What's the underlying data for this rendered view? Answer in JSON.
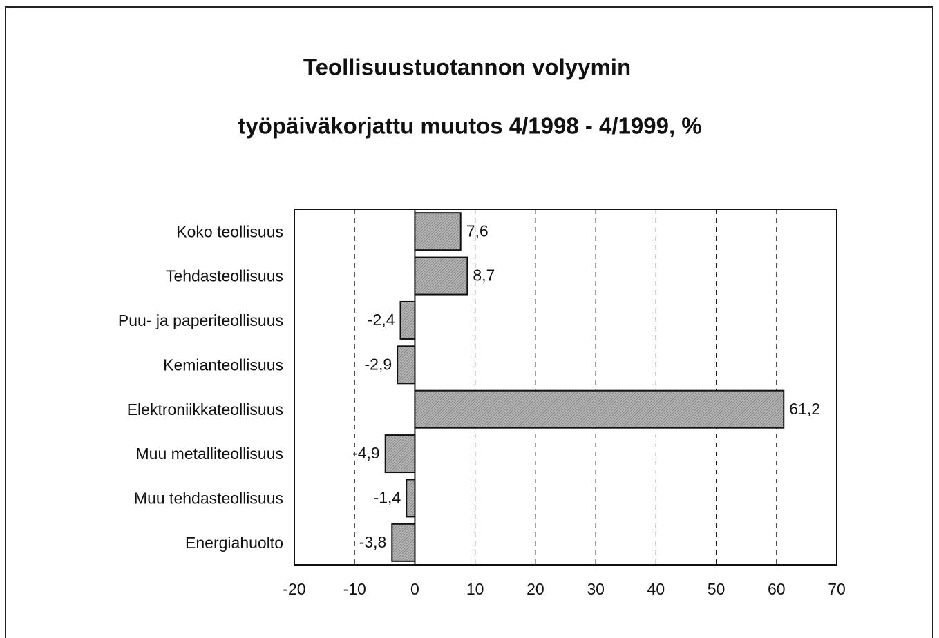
{
  "chart_data": {
    "type": "barh",
    "title": "Teollisuustuotannon volyymin",
    "subtitle": "työpäiväkorjattu muutos 4/1998 - 4/1999, %",
    "categories": [
      "Koko teollisuus",
      "Tehdasteollisuus",
      "Puu- ja paperiteollisuus",
      "Kemianteollisuus",
      "Elektroniikkateollisuus",
      "Muu metalliteollisuus",
      "Muu tehdasteollisuus",
      "Energiahuolto"
    ],
    "values": [
      7.6,
      8.7,
      -2.4,
      -2.9,
      61.2,
      -4.9,
      -1.4,
      -3.8
    ],
    "value_labels": [
      "7,6",
      "8,7",
      "-2,4",
      "-2,9",
      "61,2",
      "-4,9",
      "-1,4",
      "-3,8"
    ],
    "color": "#a8a8a8",
    "xlim": [
      -20,
      70
    ],
    "xticks": [
      -20,
      -10,
      0,
      10,
      20,
      30,
      40,
      50,
      60,
      70
    ],
    "grid": true
  }
}
